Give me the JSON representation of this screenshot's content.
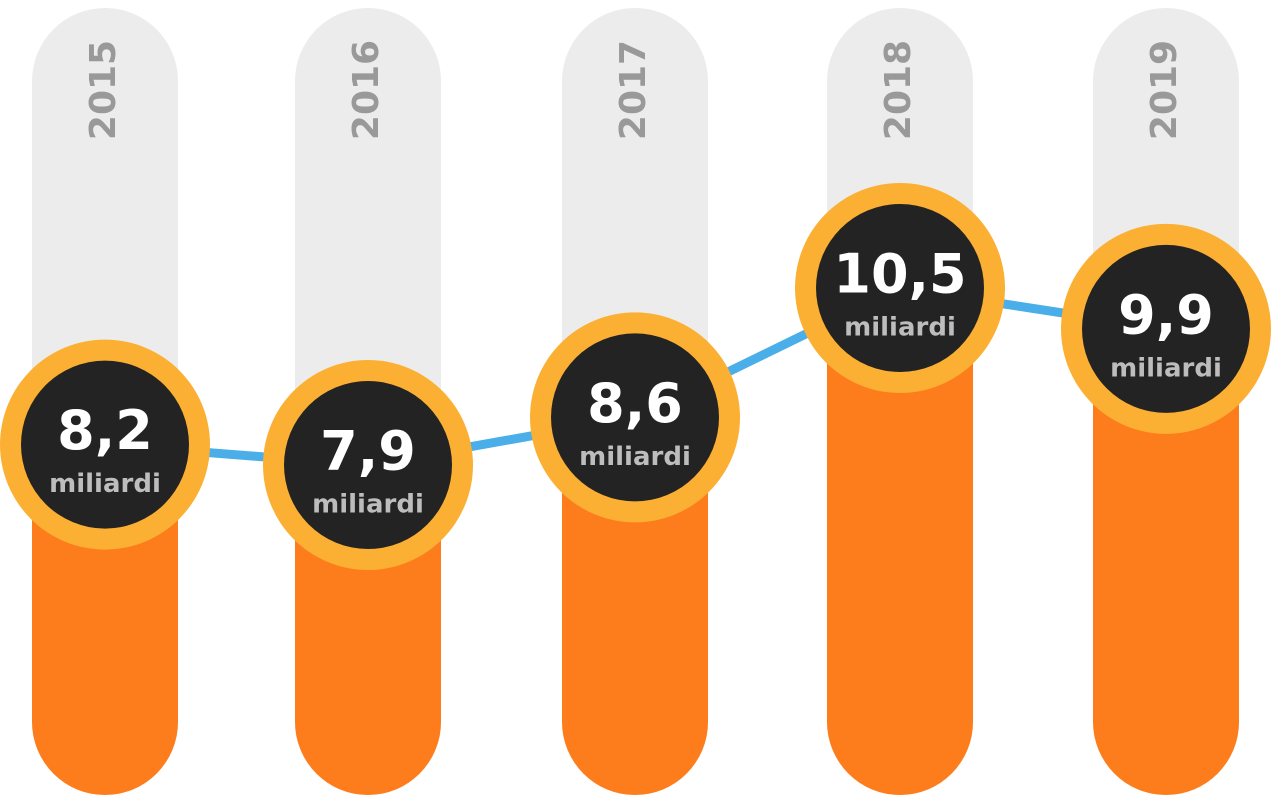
{
  "chart_data": {
    "type": "bar-line",
    "categories": [
      "2015",
      "2016",
      "2017",
      "2018",
      "2019"
    ],
    "values": [
      8.2,
      7.9,
      8.6,
      10.5,
      9.9
    ],
    "value_labels": [
      "8,2",
      "7,9",
      "8,6",
      "10,5",
      "9,9"
    ],
    "unit": "miliardi",
    "color": "#fd7d1c",
    "ring_color": "#fbb034",
    "line_color": "#4aaee8"
  }
}
